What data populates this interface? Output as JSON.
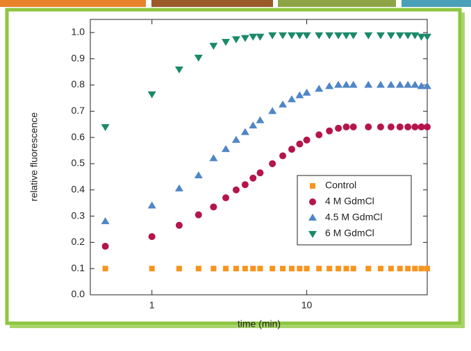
{
  "chart_data": {
    "type": "scatter",
    "xlabel": "time (min)",
    "ylabel": "relative fluorescence",
    "xscale": "log",
    "xlim": [
      0.4,
      60
    ],
    "xticks": [
      1,
      10
    ],
    "ylim": [
      0,
      1.05
    ],
    "yticks": [
      {
        "value": 0,
        "label": "0.0"
      },
      0.1,
      0.2,
      0.3,
      0.4,
      0.5,
      0.6,
      0.7,
      0.8,
      0.9,
      {
        "value": 1,
        "label": "1.0"
      }
    ],
    "legend_loc": "center right",
    "x": [
      0.5,
      1,
      1.5,
      2,
      2.5,
      3,
      3.5,
      4,
      4.5,
      5,
      6,
      7,
      8,
      9,
      10,
      12,
      14,
      16,
      18,
      20,
      25,
      30,
      35,
      40,
      45,
      50,
      55,
      60
    ],
    "series": [
      {
        "name": "Control",
        "color": "#f7941d",
        "marker": "square",
        "values": [
          0.1,
          0.1,
          0.1,
          0.1,
          0.1,
          0.1,
          0.1,
          0.1,
          0.1,
          0.1,
          0.1,
          0.1,
          0.1,
          0.1,
          0.1,
          0.1,
          0.1,
          0.1,
          0.1,
          0.1,
          0.1,
          0.1,
          0.1,
          0.1,
          0.1,
          0.1,
          0.1,
          0.1
        ]
      },
      {
        "name": "4 M GdmCl",
        "color": "#b5154b",
        "marker": "circle",
        "values": [
          0.185,
          0.222,
          0.265,
          0.305,
          0.335,
          0.37,
          0.4,
          0.42,
          0.445,
          0.465,
          0.5,
          0.53,
          0.555,
          0.575,
          0.59,
          0.61,
          0.625,
          0.635,
          0.64,
          0.64,
          0.64,
          0.64,
          0.64,
          0.64,
          0.64,
          0.64,
          0.64,
          0.64
        ]
      },
      {
        "name": "4.5 M GdmCl",
        "color": "#4f86c6",
        "marker": "triangle-up",
        "values": [
          0.28,
          0.34,
          0.405,
          0.455,
          0.52,
          0.555,
          0.59,
          0.62,
          0.645,
          0.665,
          0.7,
          0.725,
          0.745,
          0.76,
          0.77,
          0.785,
          0.795,
          0.8,
          0.8,
          0.8,
          0.8,
          0.8,
          0.8,
          0.8,
          0.8,
          0.8,
          0.795,
          0.795
        ]
      },
      {
        "name": "6 M GdmCl",
        "color": "#1a8a68",
        "marker": "triangle-down",
        "values": [
          0.64,
          0.765,
          0.86,
          0.905,
          0.95,
          0.965,
          0.975,
          0.98,
          0.985,
          0.985,
          0.99,
          0.99,
          0.99,
          0.99,
          0.99,
          0.99,
          0.99,
          0.99,
          0.99,
          0.99,
          0.99,
          0.99,
          0.99,
          0.99,
          0.99,
          0.99,
          0.985,
          0.985
        ]
      }
    ]
  }
}
